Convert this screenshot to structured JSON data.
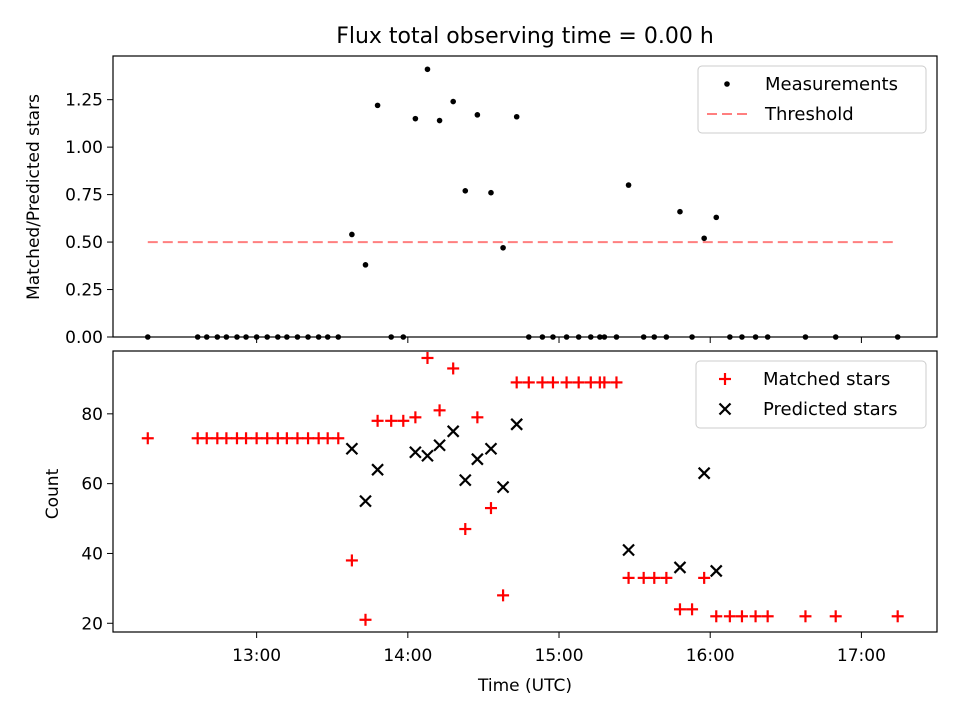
{
  "title": "Flux total observing time = 0.00 h",
  "xlabel": "Time (UTC)",
  "xticks": [
    {
      "h": 13,
      "label": "13:00"
    },
    {
      "h": 14,
      "label": "14:00"
    },
    {
      "h": 15,
      "label": "15:00"
    },
    {
      "h": 16,
      "label": "16:00"
    },
    {
      "h": 17,
      "label": "17:00"
    }
  ],
  "colors": {
    "measurements": "#000000",
    "threshold": "#ff7f7f",
    "matched": "#ff0000",
    "predicted": "#000000"
  },
  "chart_data": [
    {
      "type": "scatter",
      "ylabel": "Matched/Predicted stars",
      "xlim": [
        12.05,
        17.5
      ],
      "ylim": [
        0,
        1.48
      ],
      "yticks": [
        "0.00",
        "0.25",
        "0.50",
        "0.75",
        "1.00",
        "1.25"
      ],
      "legend": "top-right",
      "series": [
        {
          "name": "Measurements",
          "x": [
            12.28,
            12.61,
            12.67,
            12.74,
            12.8,
            12.87,
            12.93,
            13.0,
            13.07,
            13.14,
            13.2,
            13.27,
            13.34,
            13.41,
            13.47,
            13.54,
            13.63,
            13.72,
            13.8,
            13.89,
            13.97,
            14.05,
            14.13,
            14.21,
            14.3,
            14.38,
            14.46,
            14.55,
            14.63,
            14.72,
            14.8,
            14.89,
            14.96,
            15.05,
            15.13,
            15.21,
            15.27,
            15.3,
            15.38,
            15.46,
            15.56,
            15.63,
            15.71,
            15.8,
            15.88,
            15.96,
            16.04,
            16.13,
            16.21,
            16.3,
            16.38,
            16.63,
            16.83,
            17.24
          ],
          "y": [
            0,
            0,
            0,
            0,
            0,
            0,
            0,
            0,
            0,
            0,
            0,
            0,
            0,
            0,
            0,
            0,
            0.54,
            0.38,
            1.22,
            0,
            0,
            1.15,
            1.41,
            1.14,
            1.24,
            0.77,
            1.17,
            0.76,
            0.47,
            1.16,
            0,
            0,
            0,
            0,
            0,
            0,
            0,
            0,
            0,
            0.8,
            0,
            0,
            0,
            0.66,
            0,
            0.52,
            0.63,
            0,
            0,
            0,
            0,
            0,
            0,
            0
          ]
        },
        {
          "name": "Threshold",
          "x": [
            12.28,
            17.24
          ],
          "y": [
            0.5,
            0.5
          ]
        }
      ]
    },
    {
      "type": "scatter",
      "ylabel": "Count",
      "xlim": [
        12.05,
        17.5
      ],
      "ylim": [
        17.5,
        98
      ],
      "yticks": [
        "20",
        "40",
        "60",
        "80"
      ],
      "legend": "top-right",
      "series": [
        {
          "name": "Matched stars",
          "x": [
            12.28,
            12.61,
            12.67,
            12.74,
            12.8,
            12.87,
            12.93,
            13.0,
            13.07,
            13.14,
            13.2,
            13.27,
            13.34,
            13.41,
            13.47,
            13.54,
            13.63,
            13.72,
            13.8,
            13.89,
            13.97,
            14.05,
            14.13,
            14.21,
            14.3,
            14.38,
            14.46,
            14.55,
            14.63,
            14.72,
            14.8,
            14.89,
            14.96,
            15.05,
            15.13,
            15.21,
            15.27,
            15.3,
            15.38,
            15.46,
            15.56,
            15.63,
            15.71,
            15.8,
            15.88,
            15.96,
            16.04,
            16.13,
            16.21,
            16.3,
            16.38,
            16.63,
            16.83,
            17.24
          ],
          "y": [
            73,
            73,
            73,
            73,
            73,
            73,
            73,
            73,
            73,
            73,
            73,
            73,
            73,
            73,
            73,
            73,
            38,
            21,
            78,
            78,
            78,
            79,
            96,
            81,
            93,
            47,
            79,
            53,
            28,
            89,
            89,
            89,
            89,
            89,
            89,
            89,
            89,
            89,
            89,
            33,
            33,
            33,
            33,
            24,
            24,
            33,
            22,
            22,
            22,
            22,
            22,
            22,
            22,
            22
          ]
        },
        {
          "name": "Predicted stars",
          "x": [
            13.63,
            13.72,
            13.8,
            14.05,
            14.13,
            14.21,
            14.3,
            14.38,
            14.46,
            14.55,
            14.63,
            14.72,
            15.46,
            15.8,
            15.96,
            16.04
          ],
          "y": [
            70,
            55,
            64,
            69,
            68,
            71,
            75,
            61,
            67,
            70,
            59,
            77,
            41,
            36,
            63,
            35
          ]
        }
      ]
    }
  ]
}
